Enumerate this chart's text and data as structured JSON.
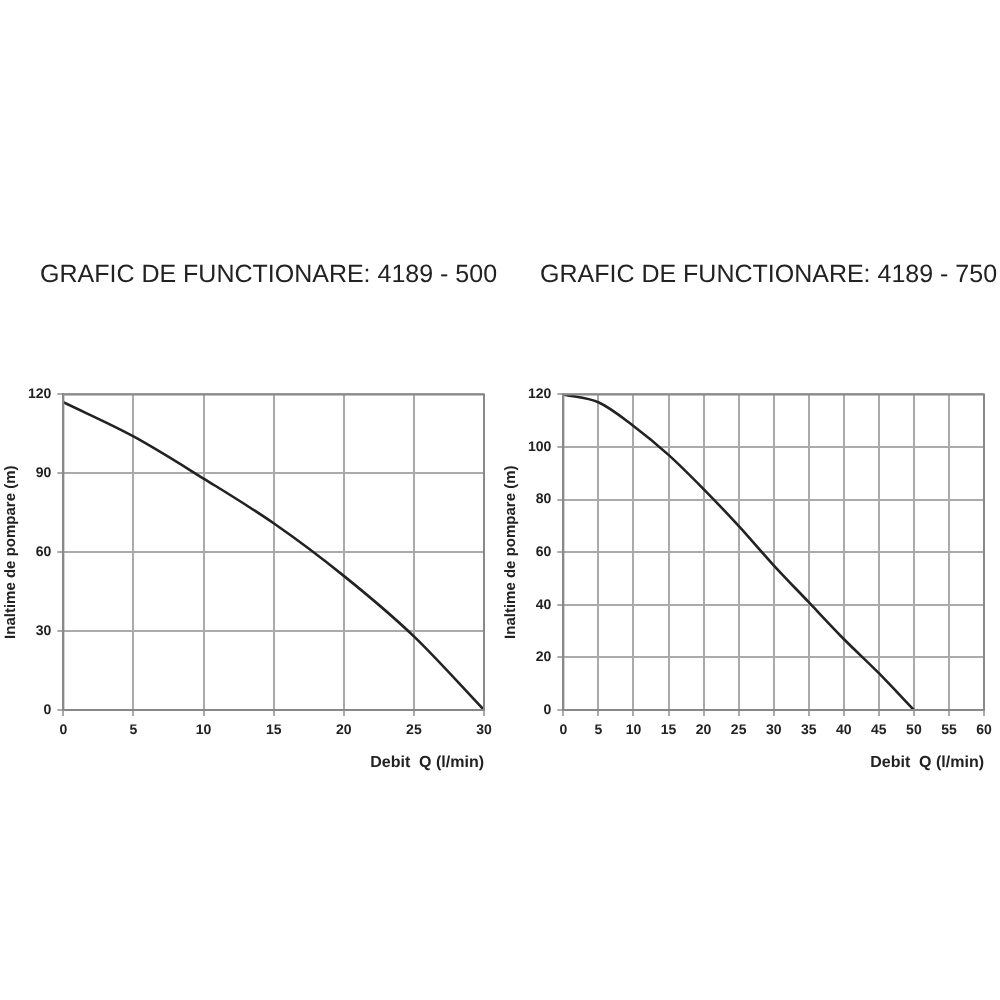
{
  "chart_data": [
    {
      "type": "line",
      "title": "GRAFIC DE FUNCTIONARE: 4189 - 500",
      "xlabel": "Debit  Q (l/min)",
      "ylabel": "Inaltime de pompare (m)",
      "x": [
        0,
        5,
        10,
        15,
        20,
        25,
        30
      ],
      "series": [
        {
          "color": "#222222",
          "values": [
            117,
            104,
            88,
            71,
            51,
            28,
            0
          ]
        }
      ],
      "xlim": [
        0,
        30
      ],
      "xticks": [
        0,
        5,
        10,
        15,
        20,
        25,
        30
      ],
      "ylim": [
        0,
        120
      ],
      "yticks": [
        0,
        30,
        60,
        90,
        120
      ],
      "grid": true,
      "marker": "none",
      "line_style": "solid"
    },
    {
      "type": "line",
      "title": "GRAFIC DE FUNCTIONARE: 4189 - 750",
      "xlabel": "Debit  Q (l/min)",
      "ylabel": "Inaltime de pompare (m)",
      "x": [
        0,
        5,
        10,
        15,
        20,
        25,
        30,
        35,
        40,
        45,
        50
      ],
      "series": [
        {
          "color": "#222222",
          "values": [
            120,
            117,
            108,
            97,
            84,
            70,
            55,
            41,
            27,
            14,
            0
          ]
        }
      ],
      "xlim": [
        0,
        60
      ],
      "xticks": [
        0,
        5,
        10,
        15,
        20,
        25,
        30,
        35,
        40,
        45,
        50,
        55,
        60
      ],
      "ylim": [
        0,
        120
      ],
      "yticks": [
        0,
        20,
        40,
        60,
        80,
        100,
        120
      ],
      "grid": true,
      "marker": "none",
      "line_style": "solid"
    }
  ]
}
